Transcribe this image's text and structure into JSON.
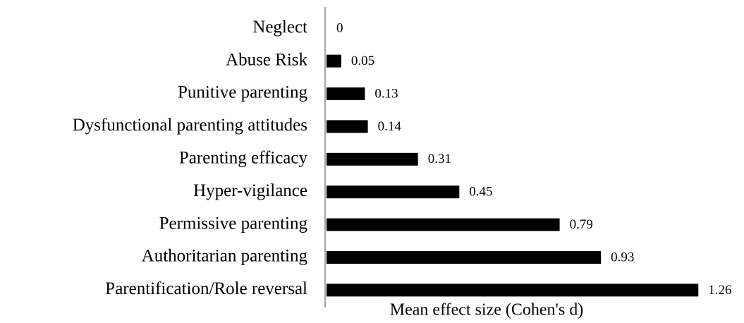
{
  "chart_data": {
    "type": "bar",
    "orientation": "horizontal",
    "x_label": "Mean effect size (Cohen's d)",
    "categories": [
      "Neglect",
      "Abuse Risk",
      "Punitive parenting",
      "Dysfunctional parenting attitudes",
      "Parenting efficacy",
      "Hyper-vigilance",
      "Permissive parenting",
      "Authoritarian parenting",
      "Parentification/Role reversal"
    ],
    "values": [
      0,
      0.05,
      0.13,
      0.14,
      0.31,
      0.45,
      0.79,
      0.93,
      1.26
    ],
    "color": "#000000",
    "xlim": [
      0,
      1.3
    ]
  }
}
